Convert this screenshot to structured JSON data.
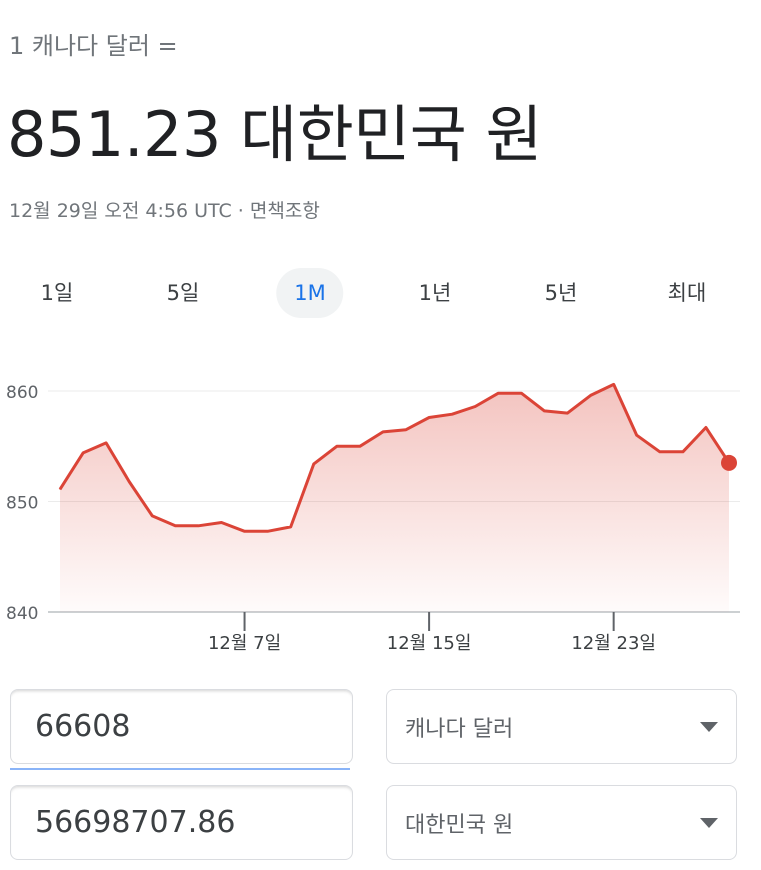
{
  "header": {
    "subtitle": "1 캐나다 달러 =",
    "value": "851.23 대한민국 원",
    "timestamp": "12월 29일 오전 4:56 UTC · 면책조항"
  },
  "tabs": [
    {
      "label": "1일"
    },
    {
      "label": "5일"
    },
    {
      "label": "1M",
      "active": true
    },
    {
      "label": "1년"
    },
    {
      "label": "5년"
    },
    {
      "label": "최대"
    }
  ],
  "chart_data": {
    "type": "area",
    "ylim": [
      840,
      860
    ],
    "yticks": [
      860,
      850,
      840
    ],
    "grid": true,
    "xticks": [
      {
        "label": "12월 7일",
        "index": 8
      },
      {
        "label": "12월 15일",
        "index": 16
      },
      {
        "label": "12월 23일",
        "index": 24
      }
    ],
    "values": [
      851.1,
      854.4,
      855.3,
      851.8,
      848.7,
      847.8,
      847.8,
      848.1,
      847.3,
      847.3,
      847.7,
      853.4,
      855.0,
      855.0,
      856.3,
      856.5,
      857.6,
      857.9,
      858.6,
      859.8,
      859.8,
      858.2,
      858.0,
      859.6,
      860.6,
      856.0,
      854.5,
      854.5,
      856.7,
      853.5
    ],
    "line_color": "#db4437",
    "fill_color": "#db4437"
  },
  "converter": {
    "amount_from": "66608",
    "amount_to": "56698707.86",
    "currency_from": "캐나다 달러",
    "currency_to": "대한민국 원"
  }
}
